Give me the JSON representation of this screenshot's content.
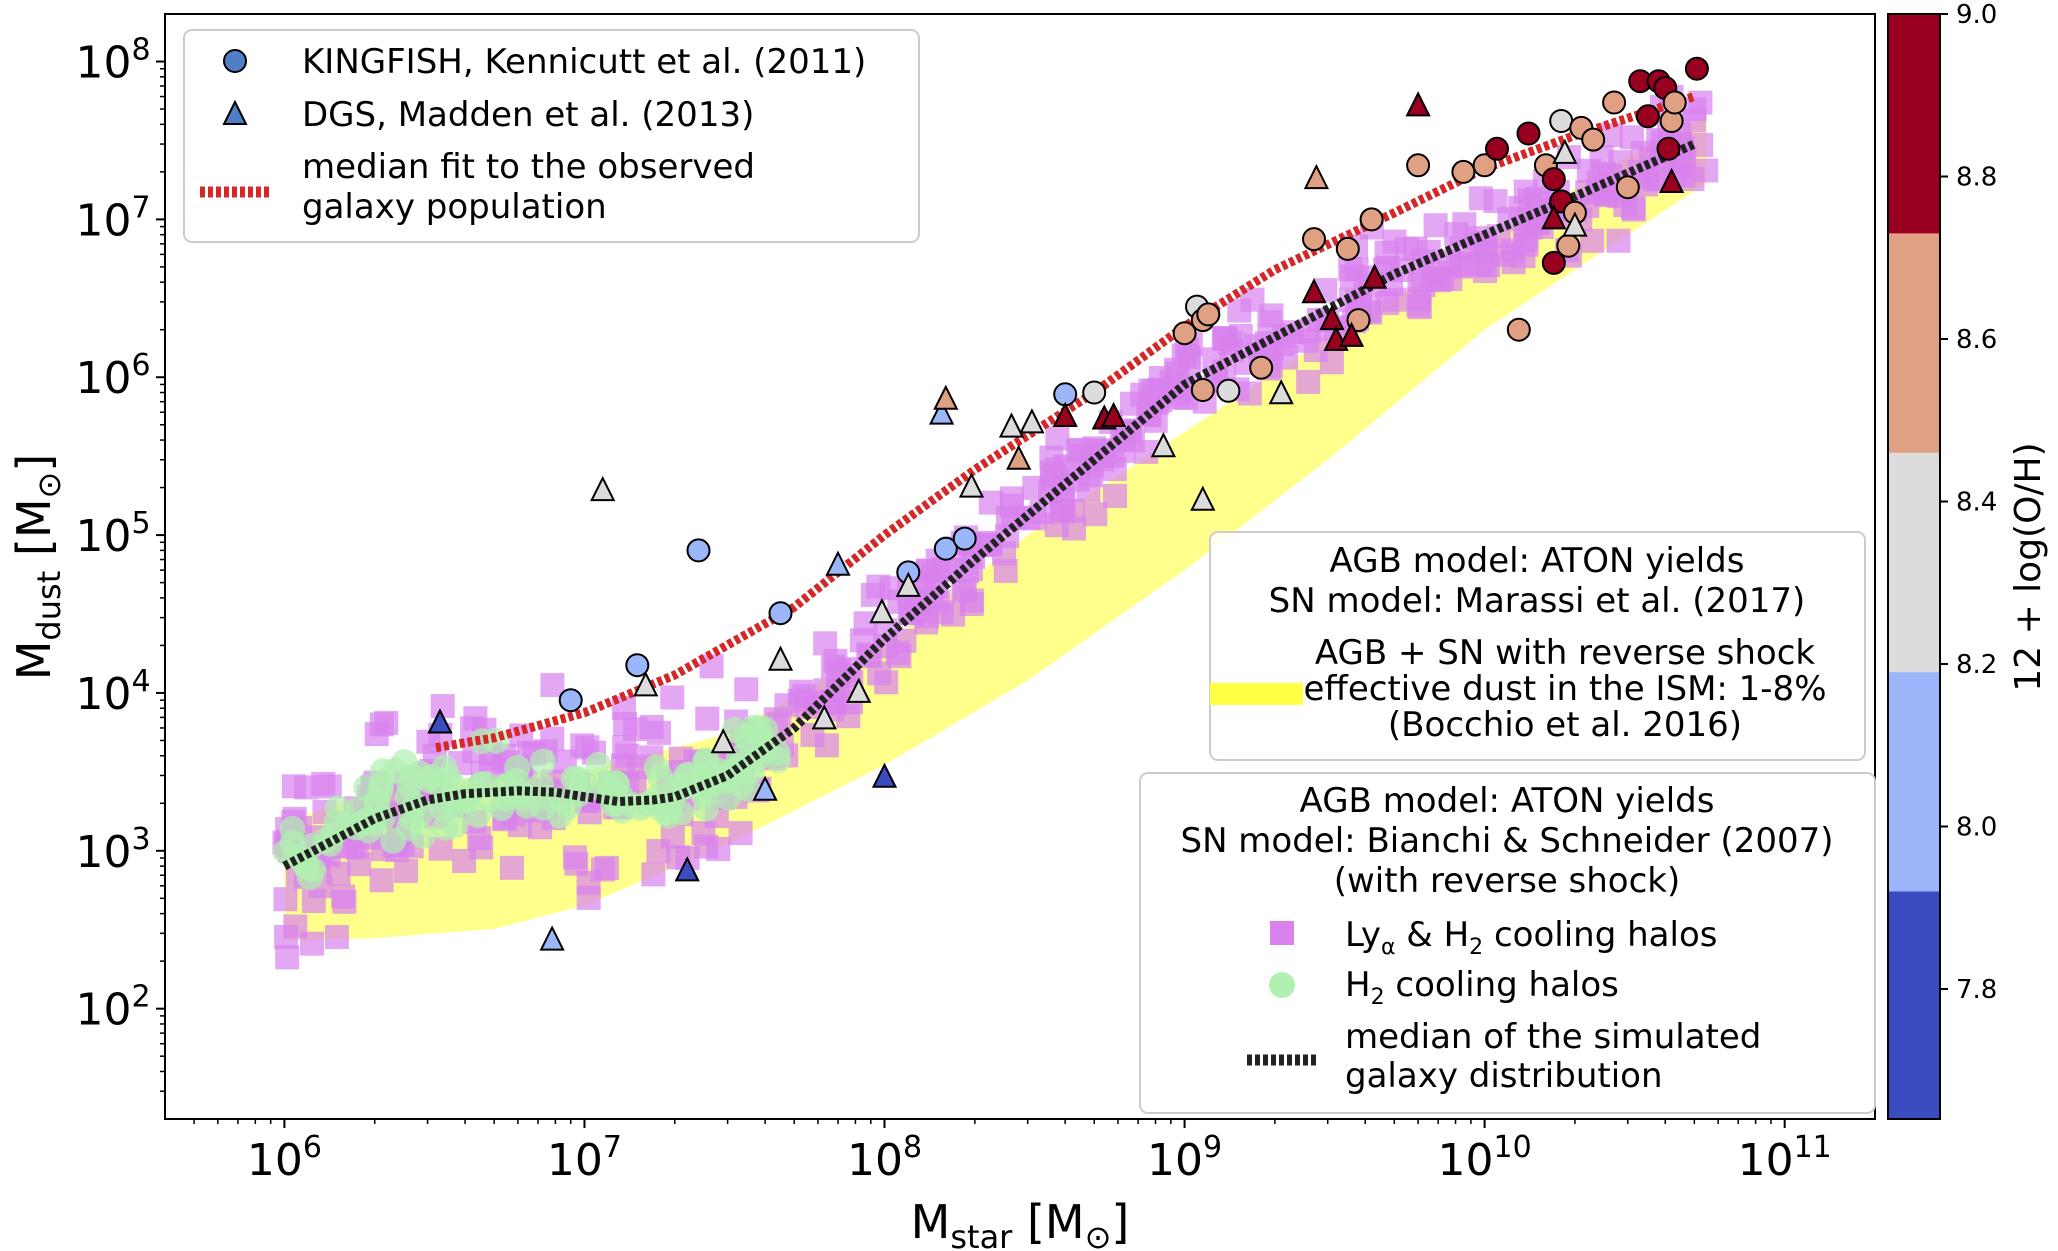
{
  "chart_data": {
    "type": "scatter",
    "xscale": "log",
    "yscale": "log",
    "xlim": [
      400000,
      200000000000
    ],
    "ylim": [
      20,
      200000000
    ],
    "xlabel": {
      "main": "M",
      "sub": "star",
      "unit": " [M",
      "unit_sub": "⊙",
      "close": "]"
    },
    "ylabel": {
      "main": "M",
      "sub": "dust",
      "unit": " [M",
      "unit_sub": "⊙",
      "close": "]"
    },
    "x_ticks": [
      {
        "value": 1000000,
        "base": "10",
        "exp": "6"
      },
      {
        "value": 10000000,
        "base": "10",
        "exp": "7"
      },
      {
        "value": 100000000,
        "base": "10",
        "exp": "8"
      },
      {
        "value": 1000000000,
        "base": "10",
        "exp": "9"
      },
      {
        "value": 10000000000,
        "base": "10",
        "exp": "10"
      },
      {
        "value": 100000000000,
        "base": "10",
        "exp": "11"
      }
    ],
    "y_ticks": [
      {
        "value": 100,
        "base": "10",
        "exp": "2"
      },
      {
        "value": 1000,
        "base": "10",
        "exp": "3"
      },
      {
        "value": 10000,
        "base": "10",
        "exp": "4"
      },
      {
        "value": 100000,
        "base": "10",
        "exp": "5"
      },
      {
        "value": 1000000,
        "base": "10",
        "exp": "6"
      },
      {
        "value": 10000000,
        "base": "10",
        "exp": "7"
      },
      {
        "value": 100000000,
        "base": "10",
        "exp": "8"
      }
    ],
    "colorbar": {
      "label": "12 + log(O/H)",
      "range": [
        7.64,
        9.0
      ],
      "bins": [
        {
          "from": 7.64,
          "to": 7.92,
          "color": "#3b4cc0"
        },
        {
          "from": 7.92,
          "to": 8.19,
          "color": "#9bb6fa"
        },
        {
          "from": 8.19,
          "to": 8.46,
          "color": "#dcdcdc"
        },
        {
          "from": 8.46,
          "to": 8.73,
          "color": "#e0a084"
        },
        {
          "from": 8.73,
          "to": 9.0,
          "color": "#99001f"
        }
      ],
      "ticks": [
        "7.8",
        "8.0",
        "8.2",
        "8.4",
        "8.6",
        "8.8",
        "9.0"
      ]
    },
    "legend_observed": {
      "position": "upper-left",
      "entries": [
        {
          "marker": "circle",
          "label": "KINGFISH, Kennicutt et al. (2011)"
        },
        {
          "marker": "triangle",
          "label": "DGS, Madden et al. (2013)"
        },
        {
          "marker": "dashed-red",
          "label1": "median fit to the observed",
          "label2": "galaxy population"
        }
      ]
    },
    "legend_band": {
      "position": "center-right",
      "title1": "AGB model: ATON yields",
      "title2": "SN model: Marassi et al. (2017)",
      "label1": "AGB + SN with reverse shock",
      "label2": "effective dust in the ISM: 1-8%",
      "label3": "(Bocchio et al. 2016)"
    },
    "legend_sim": {
      "position": "lower-right",
      "title1": "AGB model: ATON yields",
      "title2": "SN model: Bianchi & Schneider (2007)",
      "title3": "(with reverse shock)",
      "entry_squares": {
        "a": "Ly",
        "a_sub": "α",
        "b": " & H",
        "b_sub": "2",
        "c": " cooling halos"
      },
      "entry_circles": {
        "a": "H",
        "a_sub": "2",
        "b": " cooling halos"
      },
      "entry_median1": "median of the simulated",
      "entry_median2": "galaxy distribution"
    },
    "colors": {
      "red_fit": "#d62728",
      "sim_median": "#222222",
      "band": "#ffff66",
      "square": "#d982ee",
      "h2": "#b0f0b0"
    },
    "observed_median_fit": {
      "x": [
        3200000,
        5000000,
        10000000,
        20000000,
        50000000,
        100000000,
        200000000,
        500000000,
        1000000000,
        2000000000,
        5000000000,
        10000000000,
        20000000000,
        50000000000
      ],
      "y": [
        4500,
        5200,
        7500,
        13000,
        35000,
        100000,
        260000,
        800000,
        2100000,
        4800000,
        11000000,
        21000000,
        34000000,
        60000000
      ]
    },
    "simulated_median": {
      "x": [
        1000000,
        1500000,
        2000000,
        3000000,
        4000000,
        6000000,
        8000000,
        10000000,
        13000000,
        17000000,
        20000000,
        30000000,
        50000000,
        100000000,
        200000000,
        500000000,
        1000000000,
        2000000000,
        5000000000,
        10000000000,
        20000000000,
        50000000000
      ],
      "y": [
        800,
        1200,
        1600,
        2100,
        2300,
        2400,
        2350,
        2200,
        2050,
        2100,
        2200,
        3000,
        6000,
        22000,
        70000,
        300000,
        900000,
        1800000,
        4500000,
        8000000,
        14000000,
        30000000
      ]
    },
    "band": {
      "x": [
        1000000,
        2000000,
        5000000,
        10000000,
        30000000,
        100000000,
        300000000,
        1000000000,
        3000000000,
        10000000000,
        30000000000,
        55000000000
      ],
      "lower": [
        270,
        280,
        320,
        450,
        1100,
        3500,
        12000,
        60000,
        300000,
        2000000,
        8000000,
        17000000
      ],
      "upper": [
        1500,
        2400,
        3000,
        3200,
        5500,
        20000,
        100000,
        450000,
        1800000,
        7000000,
        25000000,
        45000000
      ]
    },
    "kingfish": [
      {
        "x": 9000000,
        "y": 9000,
        "oh": 8.1
      },
      {
        "x": 15000000,
        "y": 15000,
        "oh": 8.1
      },
      {
        "x": 24000000,
        "y": 80000,
        "oh": 8.05
      },
      {
        "x": 45000000,
        "y": 32000,
        "oh": 8.1
      },
      {
        "x": 120000000,
        "y": 58000,
        "oh": 8.05
      },
      {
        "x": 160000000,
        "y": 82000,
        "oh": 8.05
      },
      {
        "x": 185000000,
        "y": 95000,
        "oh": 8.05
      },
      {
        "x": 400000000,
        "y": 780000,
        "oh": 8.1
      },
      {
        "x": 500000000,
        "y": 800000,
        "oh": 8.35
      },
      {
        "x": 1000000000,
        "y": 1900000,
        "oh": 8.6
      },
      {
        "x": 1100000000,
        "y": 2800000,
        "oh": 8.35
      },
      {
        "x": 1150000000,
        "y": 2300000,
        "oh": 8.6
      },
      {
        "x": 1200000000,
        "y": 2500000,
        "oh": 8.55
      },
      {
        "x": 1150000000,
        "y": 830000,
        "oh": 8.6
      },
      {
        "x": 1400000000,
        "y": 820000,
        "oh": 8.35
      },
      {
        "x": 1800000000,
        "y": 1150000,
        "oh": 8.6
      },
      {
        "x": 2700000000,
        "y": 7500000,
        "oh": 8.6
      },
      {
        "x": 3500000000,
        "y": 6500000,
        "oh": 8.6
      },
      {
        "x": 3800000000,
        "y": 2300000,
        "oh": 8.6
      },
      {
        "x": 4200000000,
        "y": 10000000,
        "oh": 8.6
      },
      {
        "x": 6000000000,
        "y": 22000000,
        "oh": 8.6
      },
      {
        "x": 8500000000,
        "y": 20000000,
        "oh": 8.6
      },
      {
        "x": 10000000000,
        "y": 22000000,
        "oh": 8.6
      },
      {
        "x": 11000000000,
        "y": 28000000,
        "oh": 8.8
      },
      {
        "x": 13000000000,
        "y": 2000000,
        "oh": 8.6
      },
      {
        "x": 14000000000,
        "y": 35000000,
        "oh": 8.8
      },
      {
        "x": 16000000000,
        "y": 22000000,
        "oh": 8.6
      },
      {
        "x": 17000000000,
        "y": 18000000,
        "oh": 8.8
      },
      {
        "x": 17000000000,
        "y": 5300000,
        "oh": 8.8
      },
      {
        "x": 18000000000,
        "y": 42000000,
        "oh": 8.35
      },
      {
        "x": 18000000000,
        "y": 13000000,
        "oh": 8.8
      },
      {
        "x": 19000000000,
        "y": 6800000,
        "oh": 8.6
      },
      {
        "x": 20000000000,
        "y": 11000000,
        "oh": 8.6
      },
      {
        "x": 21000000000,
        "y": 38000000,
        "oh": 8.6
      },
      {
        "x": 23000000000,
        "y": 32000000,
        "oh": 8.6
      },
      {
        "x": 27000000000,
        "y": 55000000,
        "oh": 8.6
      },
      {
        "x": 30000000000,
        "y": 16000000,
        "oh": 8.6
      },
      {
        "x": 33000000000,
        "y": 75000000,
        "oh": 8.8
      },
      {
        "x": 35000000000,
        "y": 45000000,
        "oh": 8.8
      },
      {
        "x": 38000000000,
        "y": 75000000,
        "oh": 8.8
      },
      {
        "x": 40000000000,
        "y": 68000000,
        "oh": 8.8
      },
      {
        "x": 41000000000,
        "y": 28000000,
        "oh": 8.8
      },
      {
        "x": 42000000000,
        "y": 42000000,
        "oh": 8.6
      },
      {
        "x": 43000000000,
        "y": 55000000,
        "oh": 8.6
      },
      {
        "x": 51000000000,
        "y": 90000000,
        "oh": 8.8
      }
    ],
    "dgs": [
      {
        "x": 3300000,
        "y": 6400,
        "oh": 7.8
      },
      {
        "x": 7800000,
        "y": 270,
        "oh": 8.1
      },
      {
        "x": 11500000,
        "y": 190000,
        "oh": 8.35
      },
      {
        "x": 16000000,
        "y": 11000,
        "oh": 8.35
      },
      {
        "x": 22000000,
        "y": 740,
        "oh": 7.8
      },
      {
        "x": 29000000,
        "y": 4800,
        "oh": 8.35
      },
      {
        "x": 40000000,
        "y": 2400,
        "oh": 8.1
      },
      {
        "x": 45000000,
        "y": 16000,
        "oh": 8.35
      },
      {
        "x": 63000000,
        "y": 6800,
        "oh": 8.35
      },
      {
        "x": 70000000,
        "y": 64000,
        "oh": 8.1
      },
      {
        "x": 82000000,
        "y": 10000,
        "oh": 8.35
      },
      {
        "x": 98000000,
        "y": 32000,
        "oh": 8.35
      },
      {
        "x": 100000000,
        "y": 2900,
        "oh": 7.8
      },
      {
        "x": 120000000,
        "y": 47000,
        "oh": 8.35
      },
      {
        "x": 155000000,
        "y": 580000,
        "oh": 8.1
      },
      {
        "x": 160000000,
        "y": 720000,
        "oh": 8.6
      },
      {
        "x": 195000000,
        "y": 200000,
        "oh": 8.35
      },
      {
        "x": 265000000,
        "y": 480000,
        "oh": 8.35
      },
      {
        "x": 280000000,
        "y": 300000,
        "oh": 8.6
      },
      {
        "x": 310000000,
        "y": 510000,
        "oh": 8.35
      },
      {
        "x": 400000000,
        "y": 560000,
        "oh": 8.8
      },
      {
        "x": 540000000,
        "y": 540000,
        "oh": 8.8
      },
      {
        "x": 580000000,
        "y": 560000,
        "oh": 8.8
      },
      {
        "x": 850000000,
        "y": 360000,
        "oh": 8.35
      },
      {
        "x": 1150000000,
        "y": 165000,
        "oh": 8.35
      },
      {
        "x": 2100000000,
        "y": 780000,
        "oh": 8.35
      },
      {
        "x": 2700000000,
        "y": 3400000,
        "oh": 8.8
      },
      {
        "x": 2750000000,
        "y": 18000000,
        "oh": 8.6
      },
      {
        "x": 3100000000,
        "y": 2300000,
        "oh": 8.8
      },
      {
        "x": 3200000000,
        "y": 1700000,
        "oh": 8.8
      },
      {
        "x": 3600000000,
        "y": 1800000,
        "oh": 8.8
      },
      {
        "x": 4300000000,
        "y": 4200000,
        "oh": 8.8
      },
      {
        "x": 6000000000,
        "y": 52000000,
        "oh": 8.8
      },
      {
        "x": 17000000000,
        "y": 10000000,
        "oh": 8.8
      },
      {
        "x": 18500000000,
        "y": 26000000,
        "oh": 8.35
      },
      {
        "x": 20000000000,
        "y": 9000000,
        "oh": 8.35
      },
      {
        "x": 42000000000,
        "y": 17000000,
        "oh": 8.8
      }
    ]
  }
}
